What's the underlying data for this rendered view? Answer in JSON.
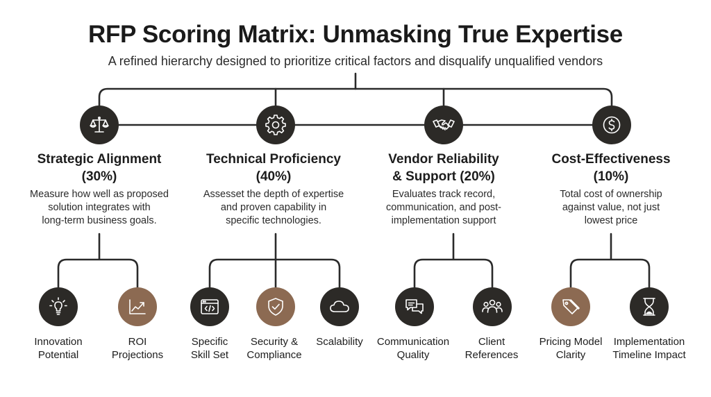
{
  "title": "RFP Scoring Matrix: Unmasking True Expertise",
  "subtitle": "A refined hierarchy designed to prioritize critical factors and disqualify unqualified vendors",
  "colors": {
    "dark": "#2c2a27",
    "accent": "#8c6a52",
    "line": "#2a2a2a"
  },
  "categories": [
    {
      "icon": "balance-scale-icon",
      "title_line1": "Strategic Alignment",
      "title_line2": "(30%)",
      "desc_line1": "Measure how well as proposed",
      "desc_line2": "solution integrates with",
      "desc_line3": "long-term business goals.",
      "children": [
        {
          "icon": "lightbulb-icon",
          "style": "dark",
          "label_line1": "Innovation",
          "label_line2": "Potential"
        },
        {
          "icon": "chart-trend-icon",
          "style": "brown",
          "label_line1": "ROI",
          "label_line2": "Projections"
        }
      ]
    },
    {
      "icon": "gear-icon",
      "title_line1": "Technical Proficiency",
      "title_line2": "(40%)",
      "desc_line1": "Assesset the depth of expertise",
      "desc_line2": "and proven capability in",
      "desc_line3": "specific technologies.",
      "children": [
        {
          "icon": "code-window-icon",
          "style": "dark",
          "label_line1": "Specific",
          "label_line2": "Skill Set"
        },
        {
          "icon": "shield-check-icon",
          "style": "brown",
          "label_line1": "Security &",
          "label_line2": "Compliance"
        },
        {
          "icon": "cloud-icon",
          "style": "dark",
          "label_line1": "Scalability",
          "label_line2": ""
        }
      ]
    },
    {
      "icon": "handshake-icon",
      "title_line1": "Vendor Reliability",
      "title_line2": "& Support (20%)",
      "desc_line1": "Evaluates track record,",
      "desc_line2": "communication, and post-",
      "desc_line3": "implementation support",
      "children": [
        {
          "icon": "chat-bubbles-icon",
          "style": "dark",
          "label_line1": "Communication",
          "label_line2": "Quality"
        },
        {
          "icon": "people-group-icon",
          "style": "dark",
          "label_line1": "Client",
          "label_line2": "References"
        }
      ]
    },
    {
      "icon": "dollar-coin-icon",
      "title_line1": "Cost-Effectiveness",
      "title_line2": "(10%)",
      "desc_line1": "Total cost of ownership",
      "desc_line2": "against value, not just",
      "desc_line3": "lowest price",
      "children": [
        {
          "icon": "price-tag-icon",
          "style": "brown",
          "label_line1": "Pricing Model",
          "label_line2": "Clarity"
        },
        {
          "icon": "hourglass-icon",
          "style": "dark",
          "label_line1": "Implementation",
          "label_line2": "Timeline Impact"
        }
      ]
    }
  ]
}
